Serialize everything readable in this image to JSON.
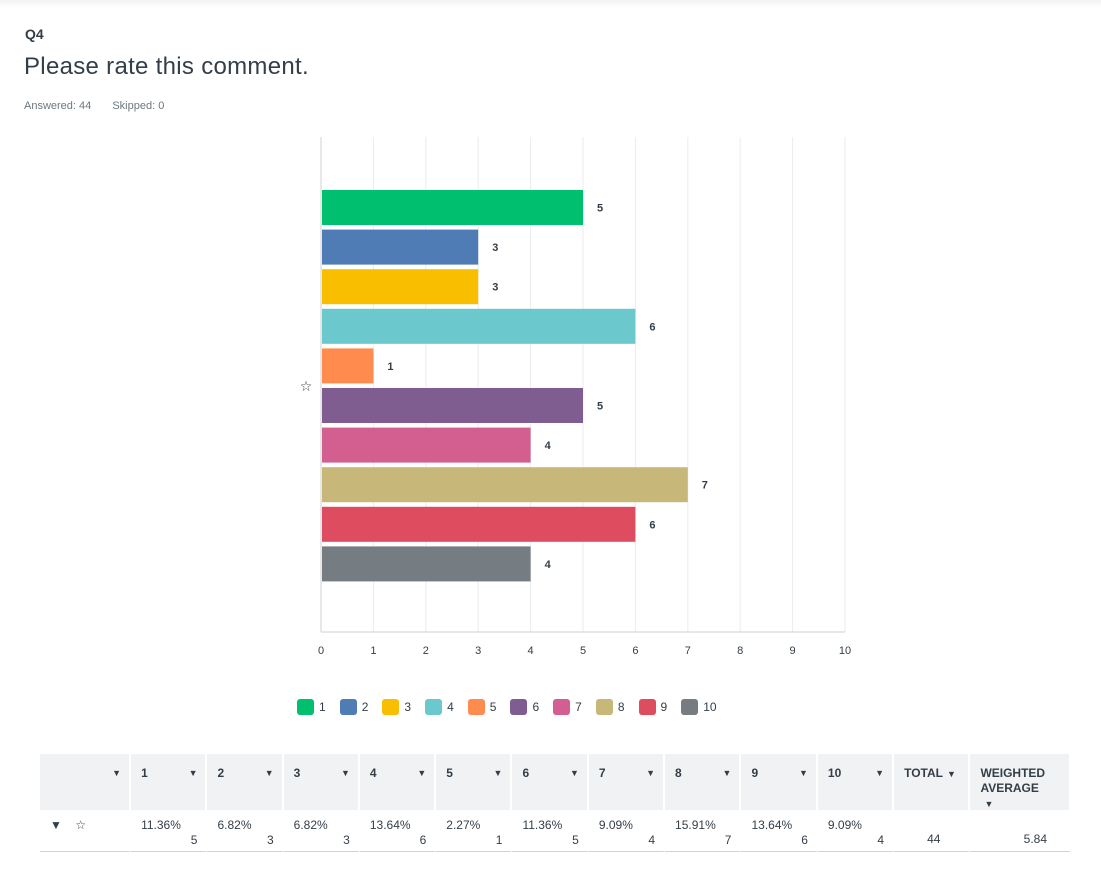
{
  "question": {
    "number": "Q4",
    "title": "Please rate this comment.",
    "answered_label": "Answered: 44",
    "skipped_label": "Skipped: 0"
  },
  "chart_data": {
    "type": "bar",
    "orientation": "horizontal",
    "title": "",
    "xlabel": "",
    "ylabel": "",
    "categories": [
      "☆"
    ],
    "series": [
      {
        "name": "1",
        "values": [
          5
        ],
        "color": "#00bf6f"
      },
      {
        "name": "2",
        "values": [
          3
        ],
        "color": "#507cb6"
      },
      {
        "name": "3",
        "values": [
          3
        ],
        "color": "#f9be00"
      },
      {
        "name": "4",
        "values": [
          6
        ],
        "color": "#6bc8cd"
      },
      {
        "name": "5",
        "values": [
          1
        ],
        "color": "#ff8b4f"
      },
      {
        "name": "6",
        "values": [
          5
        ],
        "color": "#7f5d91"
      },
      {
        "name": "7",
        "values": [
          4
        ],
        "color": "#d25f90"
      },
      {
        "name": "8",
        "values": [
          7
        ],
        "color": "#c7b879"
      },
      {
        "name": "9",
        "values": [
          6
        ],
        "color": "#dd4d5f"
      },
      {
        "name": "10",
        "values": [
          4
        ],
        "color": "#757d83"
      }
    ],
    "xlim": [
      0,
      10
    ],
    "x_ticks": [
      "0",
      "1",
      "2",
      "3",
      "4",
      "5",
      "6",
      "7",
      "8",
      "9",
      "10"
    ],
    "grid": "vertical",
    "legend": "bottom",
    "data_labels": true
  },
  "table": {
    "headers": [
      "1",
      "2",
      "3",
      "4",
      "5",
      "6",
      "7",
      "8",
      "9",
      "10",
      "TOTAL",
      "WEIGHTED AVERAGE"
    ],
    "row": {
      "label_icon": "star-outline-icon",
      "cells": [
        {
          "pct": "11.36%",
          "count": "5"
        },
        {
          "pct": "6.82%",
          "count": "3"
        },
        {
          "pct": "6.82%",
          "count": "3"
        },
        {
          "pct": "13.64%",
          "count": "6"
        },
        {
          "pct": "2.27%",
          "count": "1"
        },
        {
          "pct": "11.36%",
          "count": "5"
        },
        {
          "pct": "9.09%",
          "count": "4"
        },
        {
          "pct": "15.91%",
          "count": "7"
        },
        {
          "pct": "13.64%",
          "count": "6"
        },
        {
          "pct": "9.09%",
          "count": "4"
        }
      ],
      "total": "44",
      "weighted_average": "5.84"
    }
  }
}
